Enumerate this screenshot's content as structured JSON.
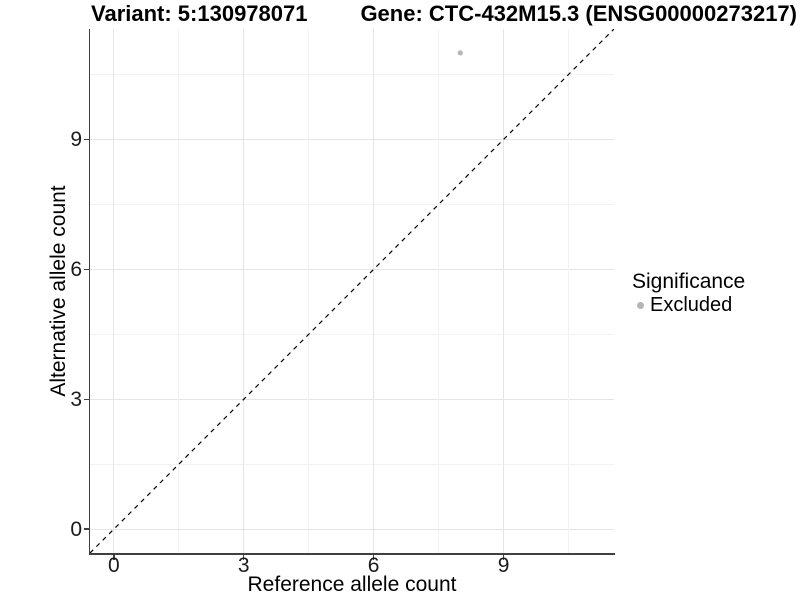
{
  "chart_data": {
    "type": "scatter",
    "title_variant": "Variant: 5:130978071",
    "title_gene": "Gene: CTC-432M15.3 (ENSG00000273217)",
    "xlabel": "Reference allele count",
    "ylabel": "Alternative allele count",
    "xlim": [
      -0.55,
      11.55
    ],
    "ylim": [
      -0.55,
      11.55
    ],
    "x_ticks": [
      0,
      3,
      6,
      9
    ],
    "y_ticks": [
      0,
      3,
      6,
      9
    ],
    "x_minor_ticks": [
      1.5,
      4.5,
      7.5,
      10.5
    ],
    "y_minor_ticks": [
      1.5,
      4.5,
      7.5,
      10.5
    ],
    "grid": "major and minor gridlines on white panel",
    "points": [
      {
        "x": 8,
        "y": 11,
        "significance": "Excluded",
        "color": "#b5b5b5",
        "radius": 2.6
      }
    ],
    "identity_line": {
      "type": "y=x",
      "style": "dashed",
      "color": "#000000"
    },
    "legend": {
      "title": "Significance",
      "position": "right",
      "entries": [
        {
          "label": "Excluded",
          "color": "#b5b5b5",
          "marker": "circle"
        }
      ]
    },
    "colors": {
      "axis_line": "#404040",
      "tick_label": "#1a1a1a",
      "grid_major": "#e5e5e5",
      "grid_minor": "#f2f2f2",
      "background": "#ffffff"
    }
  }
}
